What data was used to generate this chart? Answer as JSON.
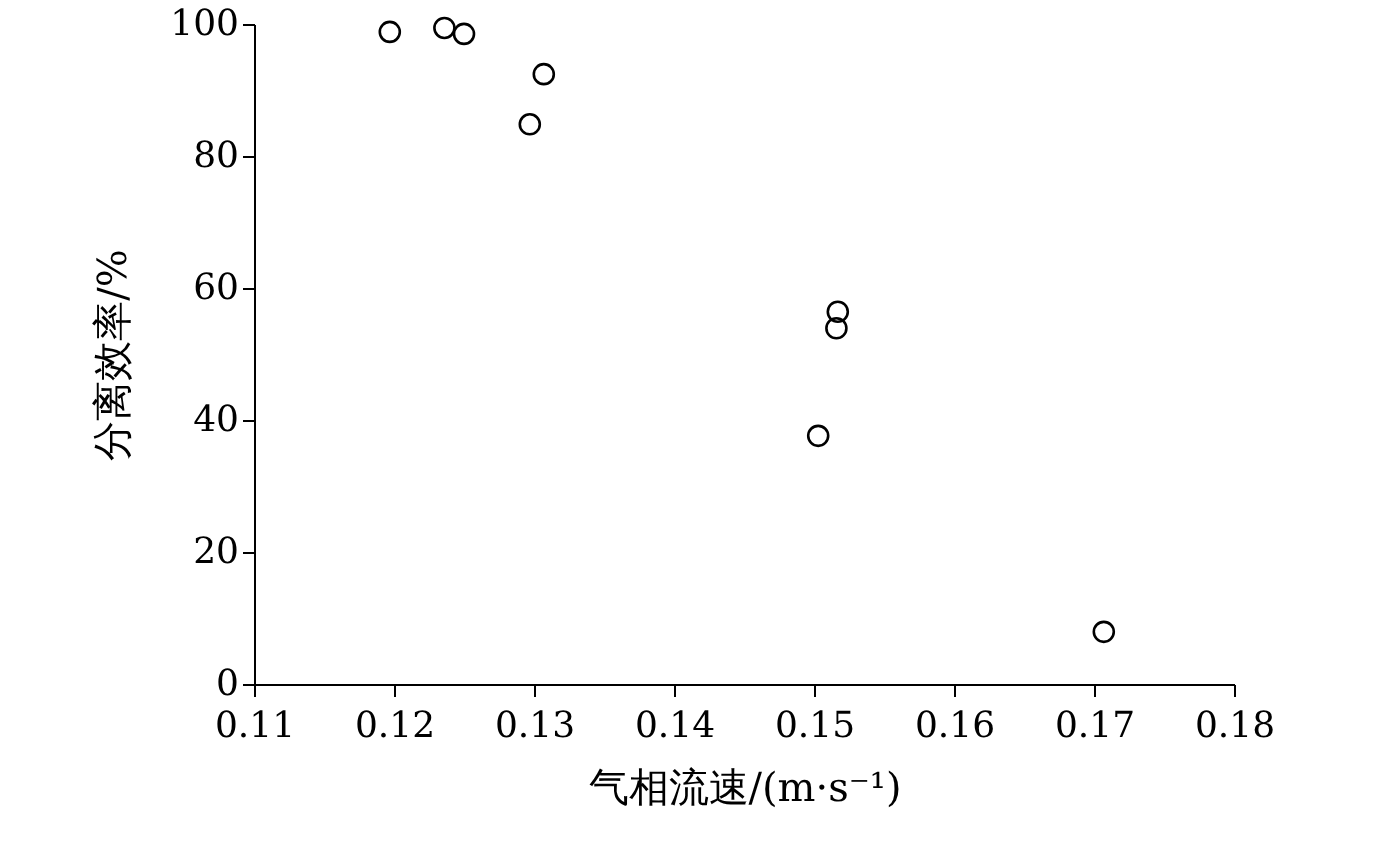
{
  "chart_data": {
    "type": "scatter",
    "xlabel": "气相流速/(m·s⁻¹)",
    "ylabel": "分离效率/%",
    "x": [
      0.1197,
      0.1236,
      0.125,
      0.1307,
      0.1297,
      0.1516,
      0.1517,
      0.1503,
      0.1707
    ],
    "values": [
      98.8,
      99.4,
      98.5,
      92.4,
      84.8,
      53.9,
      56.4,
      37.6,
      7.9
    ],
    "color": "#000000",
    "marker": "circle",
    "xlim": [
      0.11,
      0.18
    ],
    "xticks": [
      0.11,
      0.12,
      0.13,
      0.14,
      0.15,
      0.16,
      0.17,
      0.18
    ],
    "ylim": [
      0,
      100
    ],
    "yticks": [
      0,
      20,
      40,
      60,
      80,
      100
    ],
    "grid": false
  }
}
